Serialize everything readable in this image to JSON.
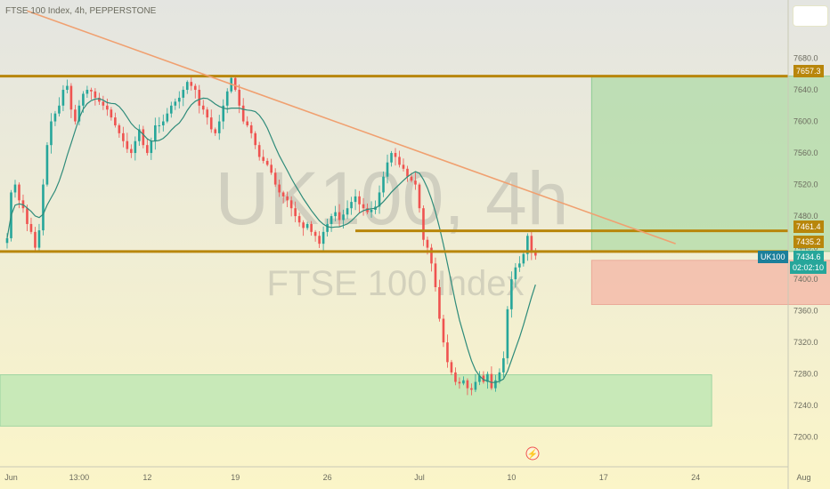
{
  "header": {
    "title": "FTSE 100 Index, 4h, PEPPERSTONE"
  },
  "watermark": {
    "symbol": "UK100, 4h",
    "name": "FTSE 100 Index"
  },
  "colors": {
    "bg_top": "#e4e5e1",
    "bg_bottom": "#fbf5c8",
    "up": "#26a69a",
    "down": "#ef5350",
    "ma": "#2e8b7a",
    "gold": "#b8860b",
    "trendline": "#f0a070",
    "tp_zone": "#a8d8a0",
    "sl_zone": "#f4b8a8",
    "demand_zone": "#b8e6b0"
  },
  "chart_data": {
    "type": "candlestick",
    "symbol": "UK100",
    "timeframe": "4h",
    "ylim": [
      7185,
      7720
    ],
    "y_ticks": [
      7200,
      7240,
      7280,
      7320,
      7360,
      7400,
      7440,
      7480,
      7520,
      7560,
      7600,
      7640,
      7680
    ],
    "x_ticks": [
      {
        "label": "Jun",
        "bar": 1
      },
      {
        "label": "13:00",
        "bar": 18
      },
      {
        "label": "12",
        "bar": 35
      },
      {
        "label": "19",
        "bar": 57
      },
      {
        "label": "26",
        "bar": 80
      },
      {
        "label": "Jul",
        "bar": 103
      },
      {
        "label": "10",
        "bar": 126
      },
      {
        "label": "17",
        "bar": 149
      },
      {
        "label": "24",
        "bar": 172
      },
      {
        "label": "Aug",
        "bar": 199
      }
    ],
    "closes": [
      7452,
      7510,
      7520,
      7500,
      7490,
      7470,
      7460,
      7440,
      7462,
      7520,
      7570,
      7600,
      7610,
      7620,
      7640,
      7645,
      7615,
      7600,
      7620,
      7635,
      7640,
      7638,
      7630,
      7625,
      7620,
      7615,
      7605,
      7595,
      7585,
      7575,
      7565,
      7560,
      7575,
      7590,
      7570,
      7560,
      7575,
      7595,
      7595,
      7600,
      7610,
      7620,
      7625,
      7630,
      7640,
      7650,
      7645,
      7640,
      7620,
      7615,
      7605,
      7590,
      7585,
      7600,
      7620,
      7638,
      7655,
      7640,
      7620,
      7600,
      7595,
      7585,
      7570,
      7555,
      7550,
      7545,
      7535,
      7520,
      7510,
      7505,
      7500,
      7490,
      7480,
      7472,
      7465,
      7470,
      7460,
      7455,
      7445,
      7460,
      7470,
      7480,
      7485,
      7475,
      7482,
      7490,
      7498,
      7505,
      7495,
      7490,
      7485,
      7488,
      7492,
      7510,
      7530,
      7548,
      7560,
      7555,
      7545,
      7540,
      7530,
      7525,
      7520,
      7490,
      7450,
      7440,
      7420,
      7390,
      7350,
      7320,
      7295,
      7282,
      7270,
      7268,
      7272,
      7262,
      7260,
      7270,
      7278,
      7270,
      7280,
      7262,
      7272,
      7282,
      7300,
      7362,
      7400,
      7415,
      7420,
      7432,
      7455,
      7435,
      7430
    ],
    "moving_average": {
      "period": 10
    },
    "horizontal_levels": [
      7657.3,
      7461.4,
      7435.2
    ],
    "price_labels": [
      "7657.3",
      "7461.4",
      "7435.2",
      "7434.6",
      "02:02:10"
    ],
    "current_symbol": "UK100",
    "current_price": 7434.6,
    "countdown": "02:02:10",
    "trendline": {
      "from": {
        "bar": 5,
        "price": 7740
      },
      "to": {
        "bar": 167,
        "price": 7445
      }
    },
    "target_zone": {
      "from_bar": 146,
      "to_bar": 209,
      "low": 7435.2,
      "high": 7657.3
    },
    "stop_zone": {
      "from_bar": 146,
      "to_bar": 209,
      "low": 7368,
      "high": 7424
    },
    "demand_zone": {
      "from_bar": 0,
      "to_bar": 176,
      "low": 7214,
      "high": 7279
    }
  }
}
